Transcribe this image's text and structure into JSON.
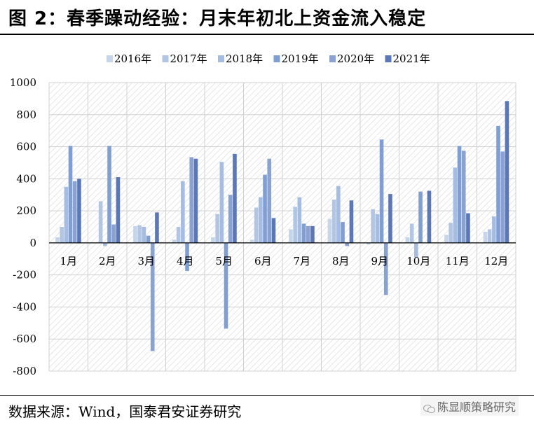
{
  "title": "图 2：春季躁动经验：月末年初北上资金流入稳定",
  "source": "数据来源：Wind，国泰君安证券研究",
  "watermark": "陈显顺策略研究",
  "watermark_icon": "wechat-icon",
  "chart_data": {
    "type": "bar",
    "categories": [
      "1月",
      "2月",
      "3月",
      "4月",
      "5月",
      "6月",
      "7月",
      "8月",
      "9月",
      "10月",
      "11月",
      "12月"
    ],
    "series": [
      {
        "name": "2016年",
        "color": "#c5d5ea",
        "values": [
          35,
          0,
          105,
          20,
          35,
          20,
          85,
          150,
          -10,
          35,
          50,
          70
        ]
      },
      {
        "name": "2017年",
        "color": "#b2c6e4",
        "values": [
          100,
          260,
          110,
          100,
          180,
          220,
          225,
          270,
          210,
          120,
          125,
          85
        ]
      },
      {
        "name": "2018年",
        "color": "#a5bde3",
        "values": [
          350,
          -20,
          100,
          385,
          505,
          285,
          285,
          355,
          180,
          -90,
          470,
          165
        ]
      },
      {
        "name": "2019年",
        "color": "#7f9ed4",
        "values": [
          605,
          605,
          45,
          -175,
          -535,
          425,
          120,
          130,
          645,
          320,
          605,
          730
        ]
      },
      {
        "name": "2020年",
        "color": "#8aa2d2",
        "values": [
          385,
          115,
          -675,
          535,
          300,
          525,
          105,
          -20,
          -325,
          0,
          575,
          570
        ]
      },
      {
        "name": "2021年",
        "color": "#5a78b8",
        "values": [
          400,
          410,
          190,
          525,
          555,
          155,
          105,
          265,
          305,
          325,
          185,
          885
        ]
      }
    ],
    "ylim": [
      -800,
      1000
    ],
    "yticks": [
      -800,
      -600,
      -400,
      -200,
      0,
      200,
      400,
      600,
      800,
      1000
    ],
    "ytick_labels": [
      "-800",
      "-600",
      "-400",
      "-200",
      "0",
      "200",
      "400",
      "600",
      "800",
      "1000"
    ],
    "grid": true,
    "legend_position": "top"
  }
}
